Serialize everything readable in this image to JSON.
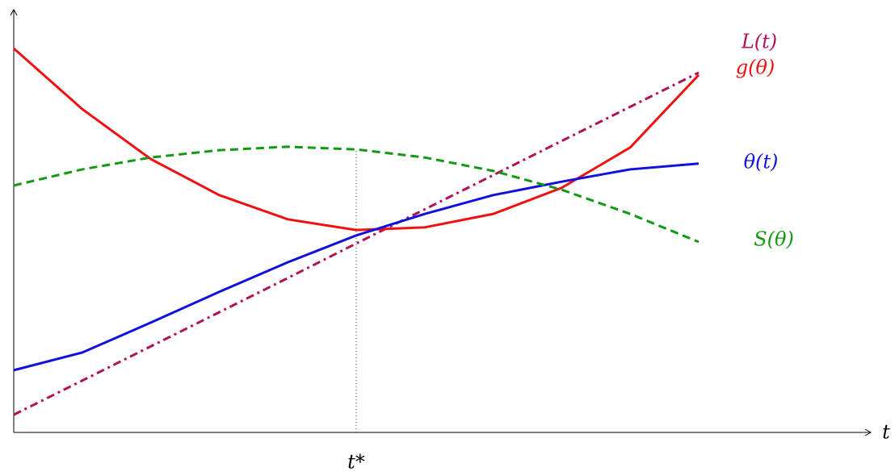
{
  "chart_data": {
    "type": "line",
    "x": [
      0,
      1,
      2,
      3,
      4,
      5,
      6,
      7,
      8,
      9,
      10
    ],
    "series": [
      {
        "name": "L(t)",
        "color": "#b0125a",
        "dash": "dashdot",
        "values": [
          0.46,
          1.35,
          2.24,
          3.13,
          4.02,
          4.92,
          5.81,
          6.7,
          7.59,
          8.48,
          9.37
        ]
      },
      {
        "name": "g(θ)",
        "color": "#ee1111",
        "dash": "solid",
        "values": [
          10.0,
          8.42,
          7.12,
          6.18,
          5.55,
          5.27,
          5.34,
          5.69,
          6.37,
          7.42,
          9.31
        ]
      },
      {
        "name": "θ(t)",
        "color": "#1111dd",
        "dash": "solid",
        "values": [
          1.62,
          2.08,
          2.86,
          3.66,
          4.43,
          5.13,
          5.69,
          6.18,
          6.53,
          6.85,
          7.0
        ]
      },
      {
        "name": "S(θ)",
        "color": "#119911",
        "dash": "dashed",
        "values": [
          6.43,
          6.85,
          7.16,
          7.35,
          7.44,
          7.37,
          7.16,
          6.81,
          6.32,
          5.69,
          4.96
        ]
      }
    ],
    "x_label": "t",
    "marker": {
      "value": 5,
      "label": "t*"
    },
    "xlim": [
      0,
      12.5
    ],
    "ylim": [
      0,
      11
    ]
  }
}
